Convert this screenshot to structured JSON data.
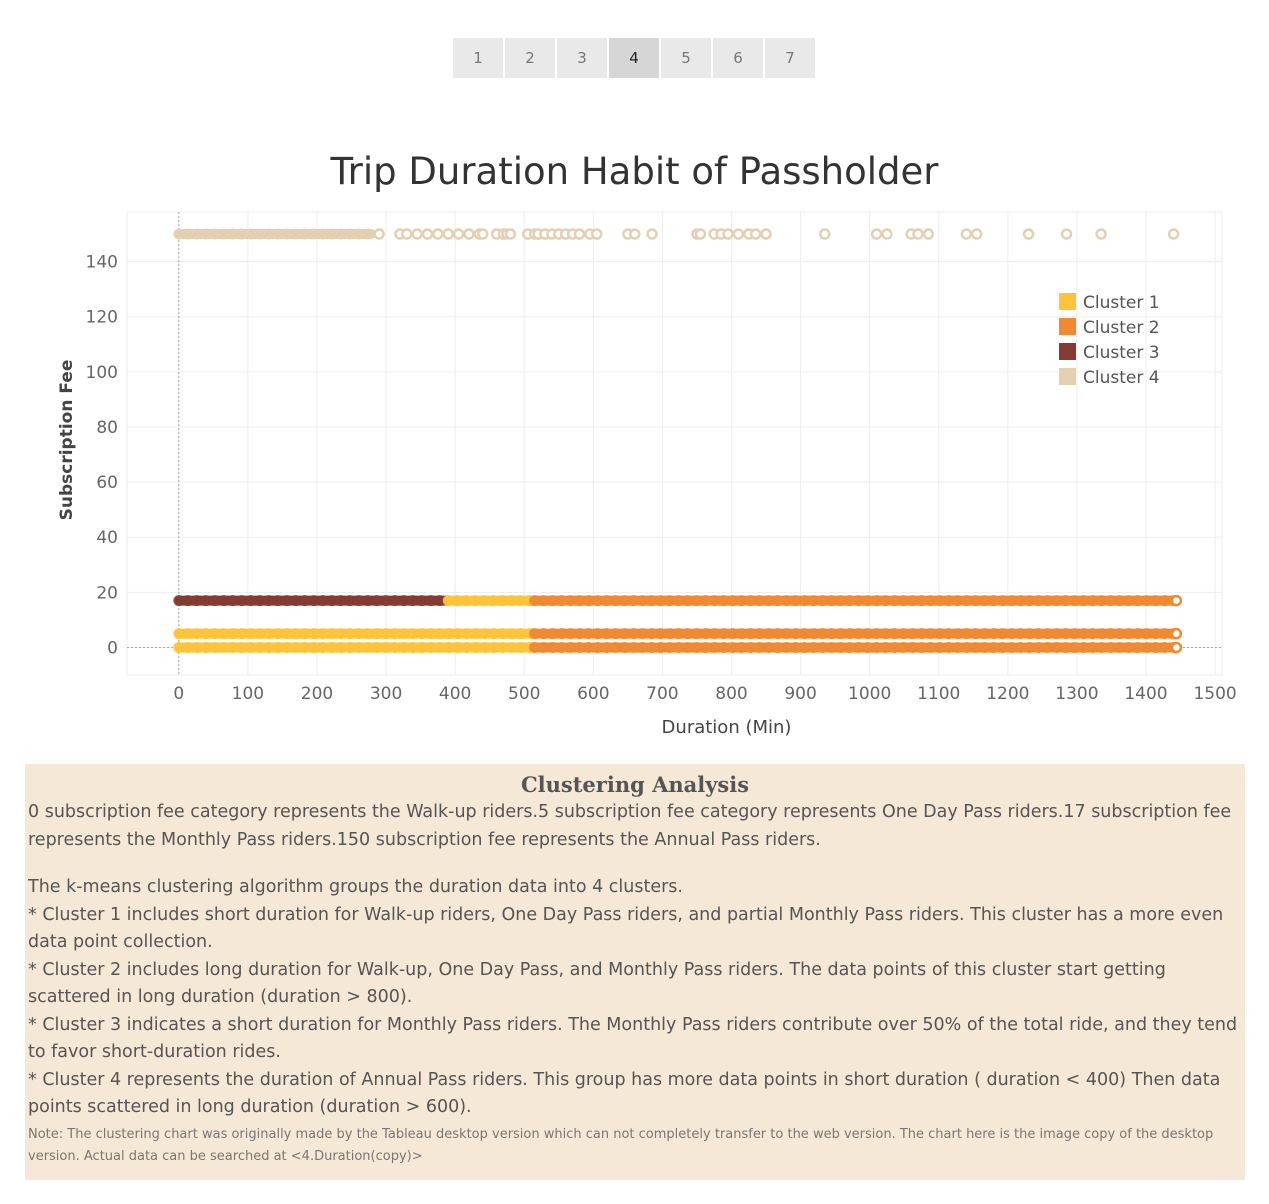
{
  "pager": {
    "pages": [
      "1",
      "2",
      "3",
      "4",
      "5",
      "6",
      "7"
    ],
    "active_index": 3
  },
  "chart_title": "Trip Duration Habit of Passholder",
  "chart_data": {
    "type": "scatter",
    "title": "Trip Duration Habit of Passholder",
    "xlabel": "Duration (Min)",
    "ylabel": "Subscription Fee",
    "xlim": [
      -75,
      1510
    ],
    "ylim": [
      -10,
      158
    ],
    "xticks": [
      0,
      100,
      200,
      300,
      400,
      500,
      600,
      700,
      800,
      900,
      1000,
      1100,
      1200,
      1300,
      1400,
      1500
    ],
    "yticks": [
      0,
      20,
      40,
      60,
      80,
      100,
      120,
      140
    ],
    "grid": true,
    "legend_position": "top-right",
    "colors": {
      "Cluster 1": "#fdc43a",
      "Cluster 2": "#f08a32",
      "Cluster 3": "#843c32",
      "Cluster 4": "#e4cfb1"
    },
    "series": [
      {
        "name": "Cluster 1",
        "segments": [
          {
            "y": 0,
            "x_from": 0,
            "x_to": 515
          },
          {
            "y": 5,
            "x_from": 0,
            "x_to": 515
          },
          {
            "y": 17,
            "x_from": 390,
            "x_to": 515
          }
        ]
      },
      {
        "name": "Cluster 2",
        "segments": [
          {
            "y": 0,
            "x_from": 515,
            "x_to": 1440
          },
          {
            "y": 5,
            "x_from": 515,
            "x_to": 1440
          },
          {
            "y": 17,
            "x_from": 515,
            "x_to": 1440
          }
        ]
      },
      {
        "name": "Cluster 3",
        "segments": [
          {
            "y": 17,
            "x_from": 0,
            "x_to": 390
          }
        ]
      },
      {
        "name": "Cluster 4",
        "segments": [
          {
            "y": 150,
            "x_from": 0,
            "x_to": 280
          }
        ],
        "scattered_points": [
          {
            "x": 290,
            "y": 150
          },
          {
            "x": 320,
            "y": 150
          },
          {
            "x": 330,
            "y": 150
          },
          {
            "x": 345,
            "y": 150
          },
          {
            "x": 360,
            "y": 150
          },
          {
            "x": 375,
            "y": 150
          },
          {
            "x": 390,
            "y": 150
          },
          {
            "x": 405,
            "y": 150
          },
          {
            "x": 420,
            "y": 150
          },
          {
            "x": 435,
            "y": 150
          },
          {
            "x": 440,
            "y": 150
          },
          {
            "x": 460,
            "y": 150
          },
          {
            "x": 470,
            "y": 150
          },
          {
            "x": 475,
            "y": 150
          },
          {
            "x": 480,
            "y": 150
          },
          {
            "x": 505,
            "y": 150
          },
          {
            "x": 515,
            "y": 150
          },
          {
            "x": 520,
            "y": 150
          },
          {
            "x": 530,
            "y": 150
          },
          {
            "x": 540,
            "y": 150
          },
          {
            "x": 550,
            "y": 150
          },
          {
            "x": 560,
            "y": 150
          },
          {
            "x": 570,
            "y": 150
          },
          {
            "x": 580,
            "y": 150
          },
          {
            "x": 595,
            "y": 150
          },
          {
            "x": 605,
            "y": 150
          },
          {
            "x": 650,
            "y": 150
          },
          {
            "x": 660,
            "y": 150
          },
          {
            "x": 685,
            "y": 150
          },
          {
            "x": 750,
            "y": 150
          },
          {
            "x": 755,
            "y": 150
          },
          {
            "x": 775,
            "y": 150
          },
          {
            "x": 785,
            "y": 150
          },
          {
            "x": 795,
            "y": 150
          },
          {
            "x": 810,
            "y": 150
          },
          {
            "x": 825,
            "y": 150
          },
          {
            "x": 835,
            "y": 150
          },
          {
            "x": 850,
            "y": 150
          },
          {
            "x": 935,
            "y": 150
          },
          {
            "x": 1010,
            "y": 150
          },
          {
            "x": 1025,
            "y": 150
          },
          {
            "x": 1060,
            "y": 150
          },
          {
            "x": 1070,
            "y": 150
          },
          {
            "x": 1085,
            "y": 150
          },
          {
            "x": 1140,
            "y": 150
          },
          {
            "x": 1155,
            "y": 150
          },
          {
            "x": 1230,
            "y": 150
          },
          {
            "x": 1285,
            "y": 150
          },
          {
            "x": 1335,
            "y": 150
          },
          {
            "x": 1440,
            "y": 150
          }
        ]
      }
    ]
  },
  "analysis": {
    "heading": "Clustering Analysis",
    "paragraph1": " 0 subscription fee category represents the Walk-up riders.5 subscription fee category represents One Day Pass riders.17 subscription fee represents the Monthly Pass riders.150 subscription fee represents the Annual Pass riders.",
    "intro": "The k-means clustering algorithm groups the duration data into 4 clusters.",
    "bullet1": " * Cluster 1 includes short duration for Walk-up riders, One Day Pass riders, and partial Monthly Pass riders. This cluster has a more even data point collection.",
    "bullet2": " * Cluster 2 includes long duration for Walk-up, One Day Pass, and Monthly Pass riders. The data points of this cluster start getting scattered in long duration (duration > 800).",
    "bullet3": " * Cluster 3 indicates a short duration for Monthly Pass riders. The Monthly Pass riders contribute over 50% of the total ride, and they tend to favor short-duration rides.",
    "bullet4": " * Cluster 4 represents the duration of Annual Pass riders. This group has more data points in short duration ( duration < 400) Then data points scattered in long duration (duration > 600).",
    "note": "Note: The clustering chart was originally made by the Tableau desktop version which can not completely transfer to the web version. The chart here is the image copy of the desktop version. Actual data can be searched at <4.Duration(copy)>"
  }
}
